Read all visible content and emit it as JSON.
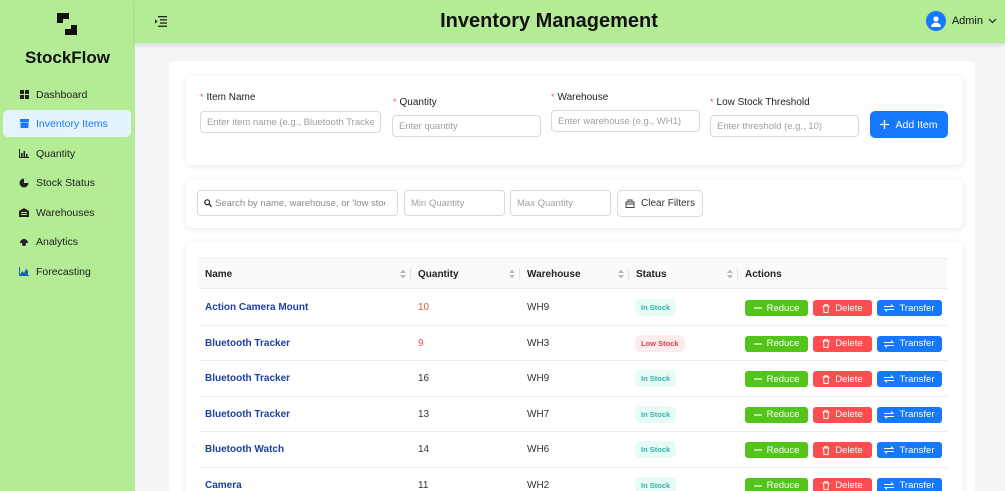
{
  "brand": {
    "name": "StockFlow"
  },
  "header": {
    "title": "Inventory Management",
    "user": "Admin"
  },
  "sidebar": {
    "items": [
      {
        "label": "Dashboard",
        "icon": "dashboard-icon"
      },
      {
        "label": "Inventory Items",
        "icon": "inventory-icon",
        "active": true
      },
      {
        "label": "Quantity",
        "icon": "bar-chart-icon"
      },
      {
        "label": "Stock Status",
        "icon": "pie-chart-icon"
      },
      {
        "label": "Warehouses",
        "icon": "warehouse-icon"
      },
      {
        "label": "Analytics",
        "icon": "analytics-icon"
      },
      {
        "label": "Forecasting",
        "icon": "area-chart-icon"
      }
    ]
  },
  "form": {
    "item_name": {
      "label": "Item Name",
      "placeholder": "Enter item name (e.g., Bluetooth Tracker)"
    },
    "quantity": {
      "label": "Quantity",
      "placeholder": "Enter quantity"
    },
    "warehouse": {
      "label": "Warehouse",
      "placeholder": "Enter warehouse (e.g., WH1)"
    },
    "threshold": {
      "label": "Low Stock Threshold",
      "placeholder": "Enter threshold (e.g., 10)"
    },
    "add_label": "Add Item"
  },
  "filters": {
    "search_placeholder": "Search by name, warehouse, or 'low stock'",
    "min_placeholder": "Min Quantity",
    "max_placeholder": "Max Quantity",
    "clear_label": "Clear Filters"
  },
  "table": {
    "columns": [
      "Name",
      "Quantity",
      "Warehouse",
      "Status",
      "Actions"
    ],
    "actions": {
      "reduce": "Reduce",
      "delete": "Delete",
      "transfer": "Transfer"
    },
    "rows": [
      {
        "name": "Action Camera Mount",
        "quantity": "10",
        "warehouse": "WH9",
        "status": "In Stock"
      },
      {
        "name": "Bluetooth Tracker",
        "quantity": "9",
        "warehouse": "WH3",
        "status": "Low Stock"
      },
      {
        "name": "Bluetooth Tracker",
        "quantity": "16",
        "warehouse": "WH9",
        "status": "In Stock"
      },
      {
        "name": "Bluetooth Tracker",
        "quantity": "13",
        "warehouse": "WH7",
        "status": "In Stock"
      },
      {
        "name": "Bluetooth Watch",
        "quantity": "14",
        "warehouse": "WH6",
        "status": "In Stock"
      },
      {
        "name": "Camera",
        "quantity": "11",
        "warehouse": "WH2",
        "status": "In Stock"
      }
    ]
  },
  "colors": {
    "accent": "#1677ff",
    "sidebar": "#b4ec96",
    "reduce": "#52c41a",
    "delete": "#ff4d4f"
  }
}
